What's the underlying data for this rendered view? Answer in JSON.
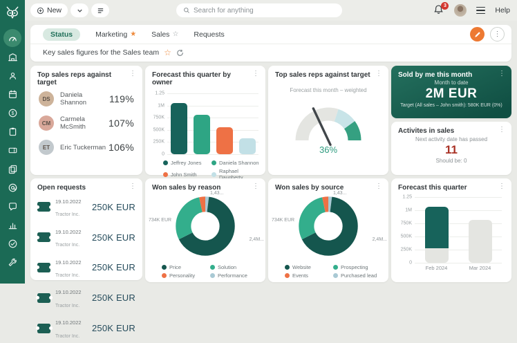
{
  "topbar": {
    "new_label": "New",
    "search_placeholder": "Search for anything",
    "notification_count": "3",
    "help_label": "Help"
  },
  "sidebar": {
    "items": [
      {
        "icon": "dashboard-gauge",
        "active": true
      },
      {
        "icon": "company-building",
        "active": false
      },
      {
        "icon": "contacts-person",
        "active": false
      },
      {
        "icon": "calendar",
        "active": false
      },
      {
        "icon": "payments-dollar",
        "active": false
      },
      {
        "icon": "clipboard",
        "active": false
      },
      {
        "icon": "ticket",
        "active": false
      },
      {
        "icon": "documents-copy",
        "active": false
      },
      {
        "icon": "email-at",
        "active": false
      },
      {
        "icon": "chat-bubble",
        "active": false
      },
      {
        "icon": "insights-bars",
        "active": false
      },
      {
        "icon": "goals-target",
        "active": false
      },
      {
        "icon": "tools-wrench",
        "active": false
      }
    ]
  },
  "tabs": {
    "items": [
      {
        "label": "Status",
        "active": true,
        "star": "none"
      },
      {
        "label": "Marketing",
        "active": false,
        "star": "filled"
      },
      {
        "label": "Sales",
        "active": false,
        "star": "outline"
      },
      {
        "label": "Requests",
        "active": false,
        "star": "none"
      }
    ],
    "subtitle": "Key sales figures for the Sales team"
  },
  "cards": {
    "top_reps": {
      "title": "Top sales reps against target",
      "rows": [
        {
          "name": "Daniela Shannon",
          "value": "119%"
        },
        {
          "name": "Carmela McSmith",
          "value": "107%"
        },
        {
          "name": "Eric Tuckerman",
          "value": "106%"
        }
      ]
    },
    "forecast_by_owner": {
      "title": "Forecast this quarter by owner"
    },
    "gauge_card": {
      "title": "Top sales reps against target"
    },
    "sold_by_me": {
      "title": "Sold by me this month",
      "subtitle": "Month to date",
      "value": "2M EUR",
      "target_line": "Target (All sales – John smith): 580K EUR (0%)"
    },
    "activities": {
      "title": "Activites in sales",
      "subtitle": "Next activity date has passed",
      "value": "11",
      "footer": "Should be: 0"
    },
    "open_requests": {
      "title": "Open requests",
      "rows": [
        {
          "date": "19.10.2022",
          "company": "Tractor Inc.",
          "amount": "250K EUR"
        },
        {
          "date": "19.10.2022",
          "company": "Tractor Inc.",
          "amount": "250K EUR"
        },
        {
          "date": "19.10.2022",
          "company": "Tractor Inc.",
          "amount": "250K EUR"
        },
        {
          "date": "19.10.2022",
          "company": "Tractor Inc.",
          "amount": "250K EUR"
        },
        {
          "date": "19.10.2022",
          "company": "Tractor Inc.",
          "amount": "250K EUR"
        }
      ]
    },
    "won_by_reason": {
      "title": "Won sales by reason"
    },
    "won_by_source": {
      "title": "Won sales by source"
    },
    "forecast_quarter": {
      "title": "Forecast this quarter"
    }
  },
  "chart_data": [
    {
      "id": "forecast_by_owner",
      "type": "bar",
      "title": "Forecast this quarter by owner",
      "categories": [
        "Jeffrey Jones",
        "Daniela Shannon",
        "John Smith",
        "Raphael Daugherty"
      ],
      "values": [
        1050000,
        810000,
        560000,
        320000
      ],
      "colors": [
        "#17635B",
        "#2EA584",
        "#EE7145",
        "#C2E0E6"
      ],
      "ylim": [
        0,
        1250000
      ],
      "yticks": [
        "1.25",
        "1M",
        "750K",
        "500K",
        "250K",
        "0"
      ],
      "legend": [
        {
          "label": "Jeffrey Jones",
          "color": "#17635B"
        },
        {
          "label": "Daniela Shannon",
          "color": "#2EA584"
        },
        {
          "label": "John Smith",
          "color": "#EE7145"
        },
        {
          "label": "Raphael Daugherty",
          "color": "#C2E0E6"
        }
      ]
    },
    {
      "id": "gauge",
      "type": "gauge",
      "subtitle": "Forecast this month – weighted",
      "value_pct": 36,
      "value_label": "36%",
      "segments": [
        {
          "from": 0,
          "to": 60,
          "color": "#E4E5E1"
        },
        {
          "from": 60,
          "to": 80,
          "color": "#C8E4E8"
        },
        {
          "from": 80,
          "to": 100,
          "color": "#35A081"
        }
      ]
    },
    {
      "id": "won_by_reason",
      "type": "pie",
      "title": "Won sales by reason",
      "slices": [
        {
          "label": "Performance",
          "color": "#A9C9D4",
          "frac": 0.02
        },
        {
          "label": "Price",
          "color": "#15564E",
          "frac": 0.655
        },
        {
          "label": "Solution",
          "color": "#33AE8C",
          "frac": 0.29
        },
        {
          "label": "Personality",
          "color": "#EE7145",
          "frac": 0.035
        }
      ],
      "callouts": {
        "left": "734K EUR",
        "top": "1,43...",
        "right": "2,4M..."
      },
      "legend": [
        {
          "label": "Price",
          "color": "#15564E"
        },
        {
          "label": "Solution",
          "color": "#33AE8C"
        },
        {
          "label": "Personality",
          "color": "#EE7145"
        },
        {
          "label": "Performance",
          "color": "#A9C9D4"
        }
      ]
    },
    {
      "id": "won_by_source",
      "type": "pie",
      "title": "Won sales by source",
      "slices": [
        {
          "label": "Purchased lead",
          "color": "#A9C9D4",
          "frac": 0.02
        },
        {
          "label": "Website",
          "color": "#15564E",
          "frac": 0.655
        },
        {
          "label": "Prospecting",
          "color": "#33AE8C",
          "frac": 0.29
        },
        {
          "label": "Events",
          "color": "#EE7145",
          "frac": 0.035
        }
      ],
      "callouts": {
        "left": "734K EUR",
        "top": "1,43...",
        "right": "2,4M..."
      },
      "legend": [
        {
          "label": "Website",
          "color": "#15564E"
        },
        {
          "label": "Prospecting",
          "color": "#33AE8C"
        },
        {
          "label": "Events",
          "color": "#EE7145"
        },
        {
          "label": "Purchased lead",
          "color": "#A9C9D4"
        }
      ]
    },
    {
      "id": "forecast_quarter",
      "type": "stacked-bar",
      "title": "Forecast this quarter",
      "categories": [
        "Feb 2024",
        "Mar 2024"
      ],
      "bars": [
        {
          "label": "Feb 2024",
          "segments": [
            {
              "name": "open",
              "color": "#E4E5E1",
              "value": 280000
            },
            {
              "name": "weighted",
              "color": "#17635B",
              "value": 780000
            }
          ]
        },
        {
          "label": "Mar 2024",
          "segments": [
            {
              "name": "open",
              "color": "#E4E5E1",
              "value": 810000
            }
          ]
        }
      ],
      "ylim": [
        0,
        1250000
      ],
      "yticks": [
        "1.25",
        "1M",
        "750K",
        "500K",
        "250K",
        "0"
      ]
    }
  ]
}
